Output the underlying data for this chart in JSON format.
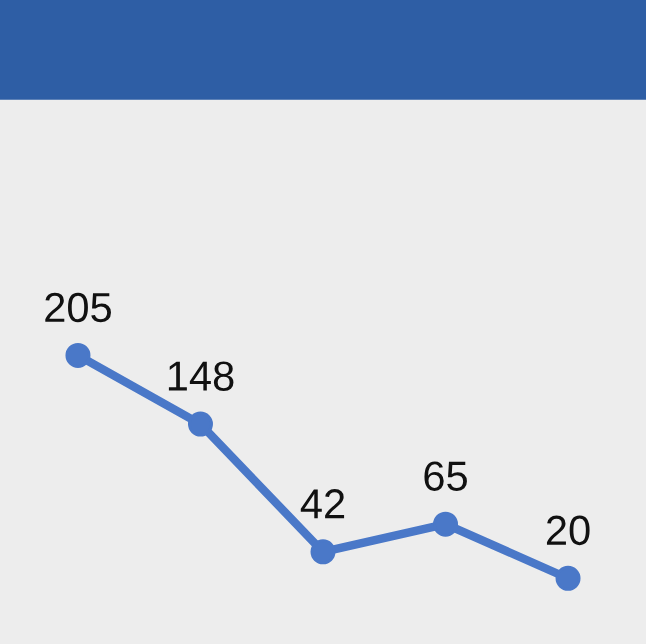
{
  "chart_data": {
    "type": "line",
    "categories": [
      null,
      null,
      null,
      null,
      null
    ],
    "series": [
      {
        "color": "#4a78c8",
        "values": [
          205,
          148,
          42,
          65,
          20
        ]
      }
    ],
    "data_labels": true,
    "marker": "circle",
    "line_style": "solid",
    "grid": false,
    "legend": false,
    "tick_labels": false
  }
}
